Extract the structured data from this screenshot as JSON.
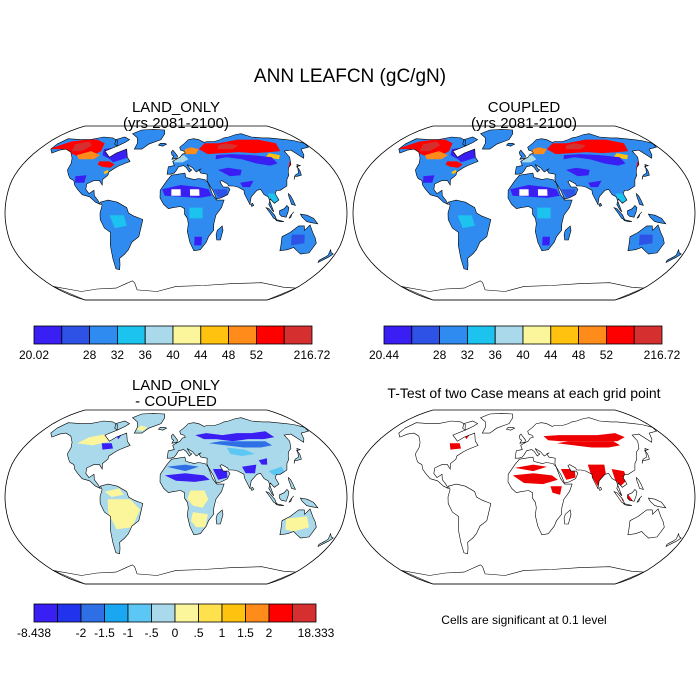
{
  "figure": {
    "title": "ANN LEAFCN (gC/gN)"
  },
  "chart_data": [
    {
      "type": "heatmap",
      "panel": "top-left",
      "title_lines": [
        "LAND_ONLY",
        "(yrs 2081-2100)"
      ],
      "projection": "Robinson world map",
      "colorbar": {
        "colors": [
          "#3a1ff5",
          "#2f52e6",
          "#2f8bef",
          "#1cc3ef",
          "#a9d9ea",
          "#fbf69c",
          "#ffc20e",
          "#ff8c1a",
          "#ff0000",
          "#d62f2f"
        ],
        "tick_labels": [
          "20.02",
          "",
          "28",
          "32",
          "36",
          "40",
          "44",
          "48",
          "52",
          "",
          "216.72"
        ],
        "min": 20.02,
        "max": 216.72
      }
    },
    {
      "type": "heatmap",
      "panel": "top-right",
      "title_lines": [
        "COUPLED",
        "(yrs 2081-2100)"
      ],
      "projection": "Robinson world map",
      "colorbar": {
        "colors": [
          "#3a1ff5",
          "#2f52e6",
          "#2f8bef",
          "#1cc3ef",
          "#a9d9ea",
          "#fbf69c",
          "#ffc20e",
          "#ff8c1a",
          "#ff0000",
          "#d62f2f"
        ],
        "tick_labels": [
          "20.44",
          "",
          "28",
          "32",
          "36",
          "40",
          "44",
          "48",
          "52",
          "",
          "216.72"
        ],
        "min": 20.44,
        "max": 216.72
      }
    },
    {
      "type": "heatmap",
      "panel": "bottom-left",
      "title_lines": [
        "LAND_ONLY",
        "- COUPLED"
      ],
      "projection": "Robinson world map",
      "colorbar": {
        "colors": [
          "#3a1ff5",
          "#2233ee",
          "#2f6fe6",
          "#1aa7f2",
          "#5cc7f5",
          "#a9d9ea",
          "#fbf69c",
          "#ffe04d",
          "#ffc20e",
          "#ff8c1a",
          "#ff0000",
          "#d62f2f"
        ],
        "tick_labels": [
          "-8.438",
          "",
          "-2",
          "-1.5",
          "-1",
          "-.5",
          "0",
          ".5",
          "1",
          "1.5",
          "2",
          "",
          "18.333"
        ],
        "min": -8.438,
        "max": 18.333
      }
    },
    {
      "type": "heatmap",
      "panel": "bottom-right",
      "title_lines": [
        "T-Test of two Case means at each grid point"
      ],
      "projection": "Robinson world map",
      "significance_color": "#ee0000",
      "caption": "Cells are significant at 0.1 level"
    }
  ]
}
